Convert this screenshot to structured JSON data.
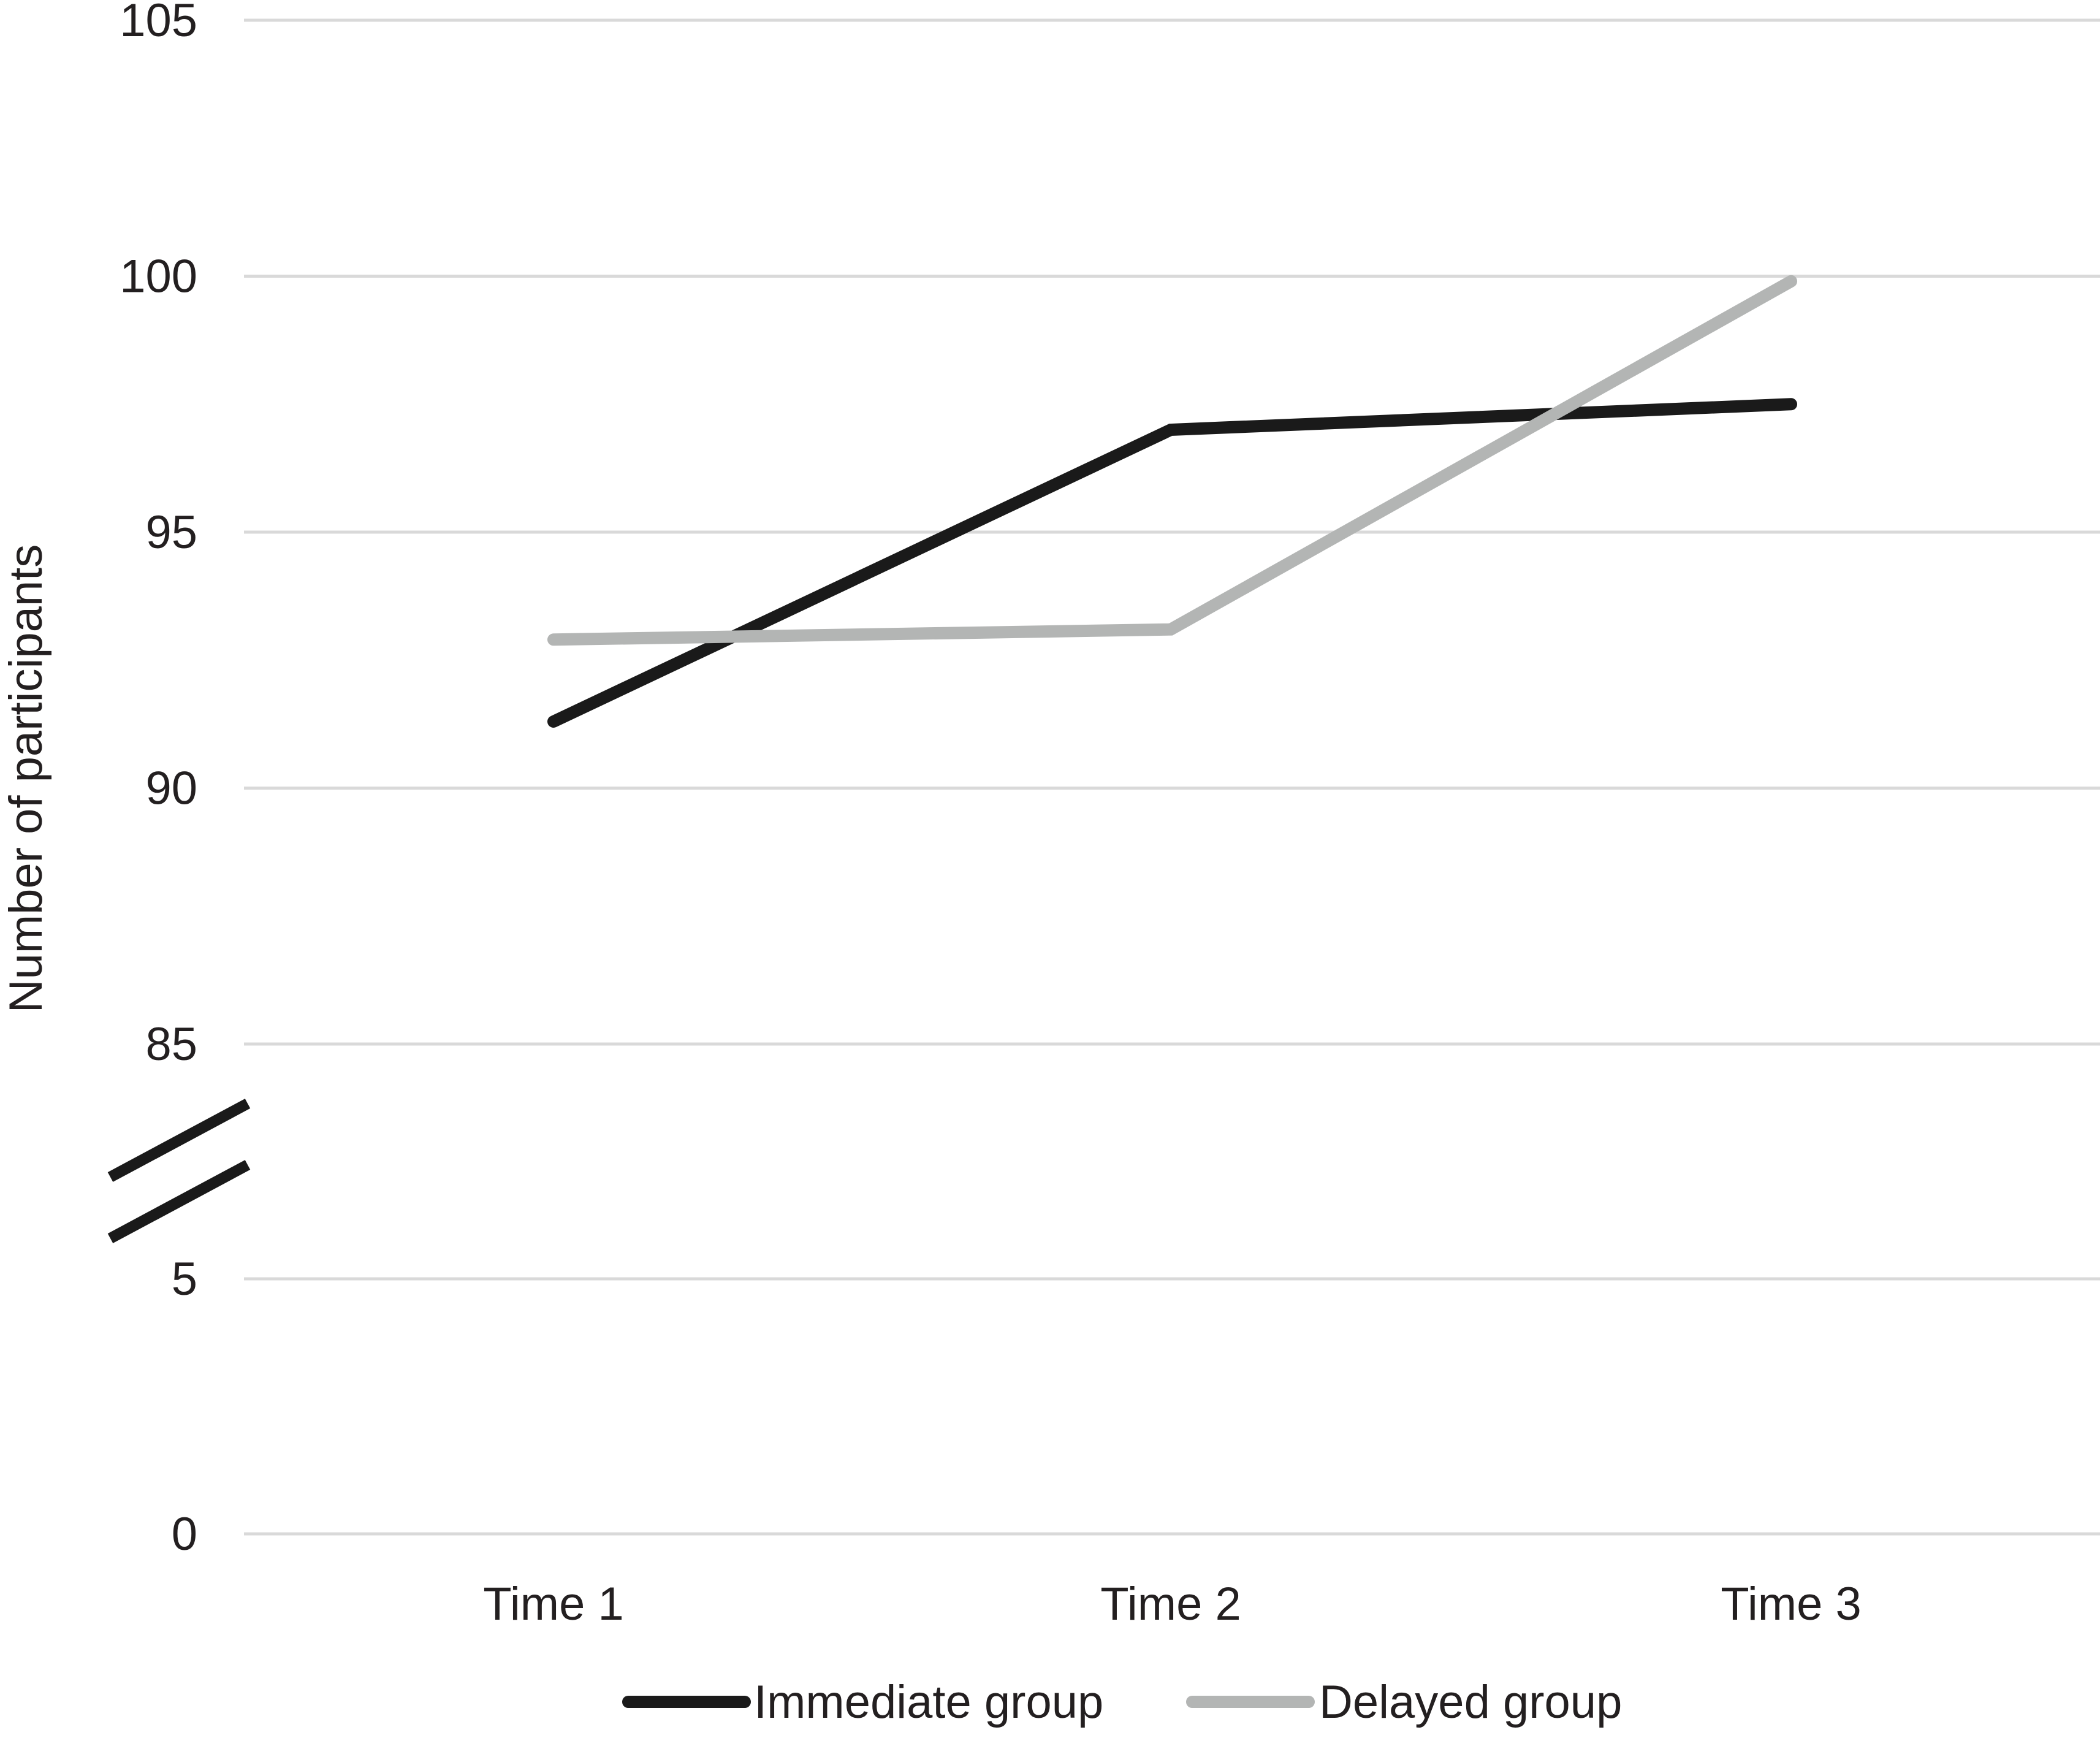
{
  "chart_data": {
    "type": "line",
    "title": "",
    "xlabel": "",
    "ylabel": "Number of participants",
    "categories": [
      "Time 1",
      "Time 2",
      "Time 3"
    ],
    "y_ticks_upper": [
      "85",
      "90",
      "95",
      "100",
      "105"
    ],
    "y_ticks_lower": [
      "0",
      "5"
    ],
    "ylim_upper": [
      85,
      105
    ],
    "ylim_lower": [
      0,
      5
    ],
    "axis_break": true,
    "grid": true,
    "legend_position": "bottom",
    "series": [
      {
        "name": "Immediate group",
        "color": "#1a1a1a",
        "values": [
          91.3,
          97.0,
          97.5
        ]
      },
      {
        "name": "Delayed group",
        "color": "#b3b5b4",
        "values": [
          92.9,
          93.1,
          99.9
        ]
      }
    ]
  }
}
